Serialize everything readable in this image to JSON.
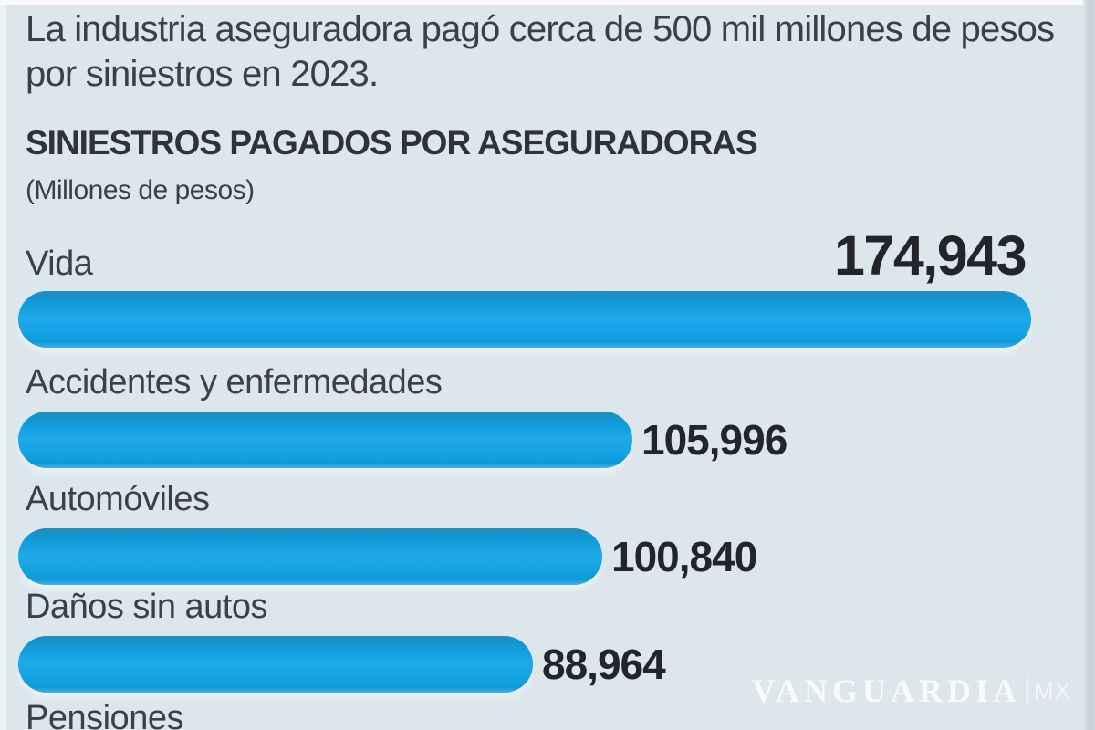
{
  "page": {
    "background_color": "#dde6eb",
    "right_edge_color": "#c6d0d7",
    "text_color": "#394047"
  },
  "intro": {
    "text": "La industria aseguradora pagó cerca de 500 mil millones de pesos por siniestros en 2023."
  },
  "chart": {
    "title": "SINIESTROS PAGADOS POR ASEGURADORAS",
    "subtitle": "(Millones de pesos)"
  },
  "chart_data": {
    "type": "bar",
    "orientation": "horizontal",
    "title": "SINIESTROS PAGADOS POR ASEGURADORAS",
    "unit_label": "Millones de pesos",
    "categories": [
      "Vida",
      "Accidentes y enfermedades",
      "Automóviles",
      "Daños sin autos",
      "Pensiones"
    ],
    "values": [
      174943,
      105996,
      100840,
      88964,
      null
    ],
    "value_labels": [
      "174,943",
      "105,996",
      "100,840",
      "88,964",
      ""
    ],
    "xlim": [
      0,
      174943
    ],
    "grid": false,
    "legend": false,
    "bar_color_top": "#2e8aac",
    "bar_color_main": "#14a3e4",
    "bar_color_bottom": "#0d9ad8",
    "value_text_color": "#222529",
    "note": "Pensiones bar and value are cut off below the visible area"
  },
  "watermark": {
    "brand": "VANGUARDIA",
    "suffix": "MX"
  }
}
